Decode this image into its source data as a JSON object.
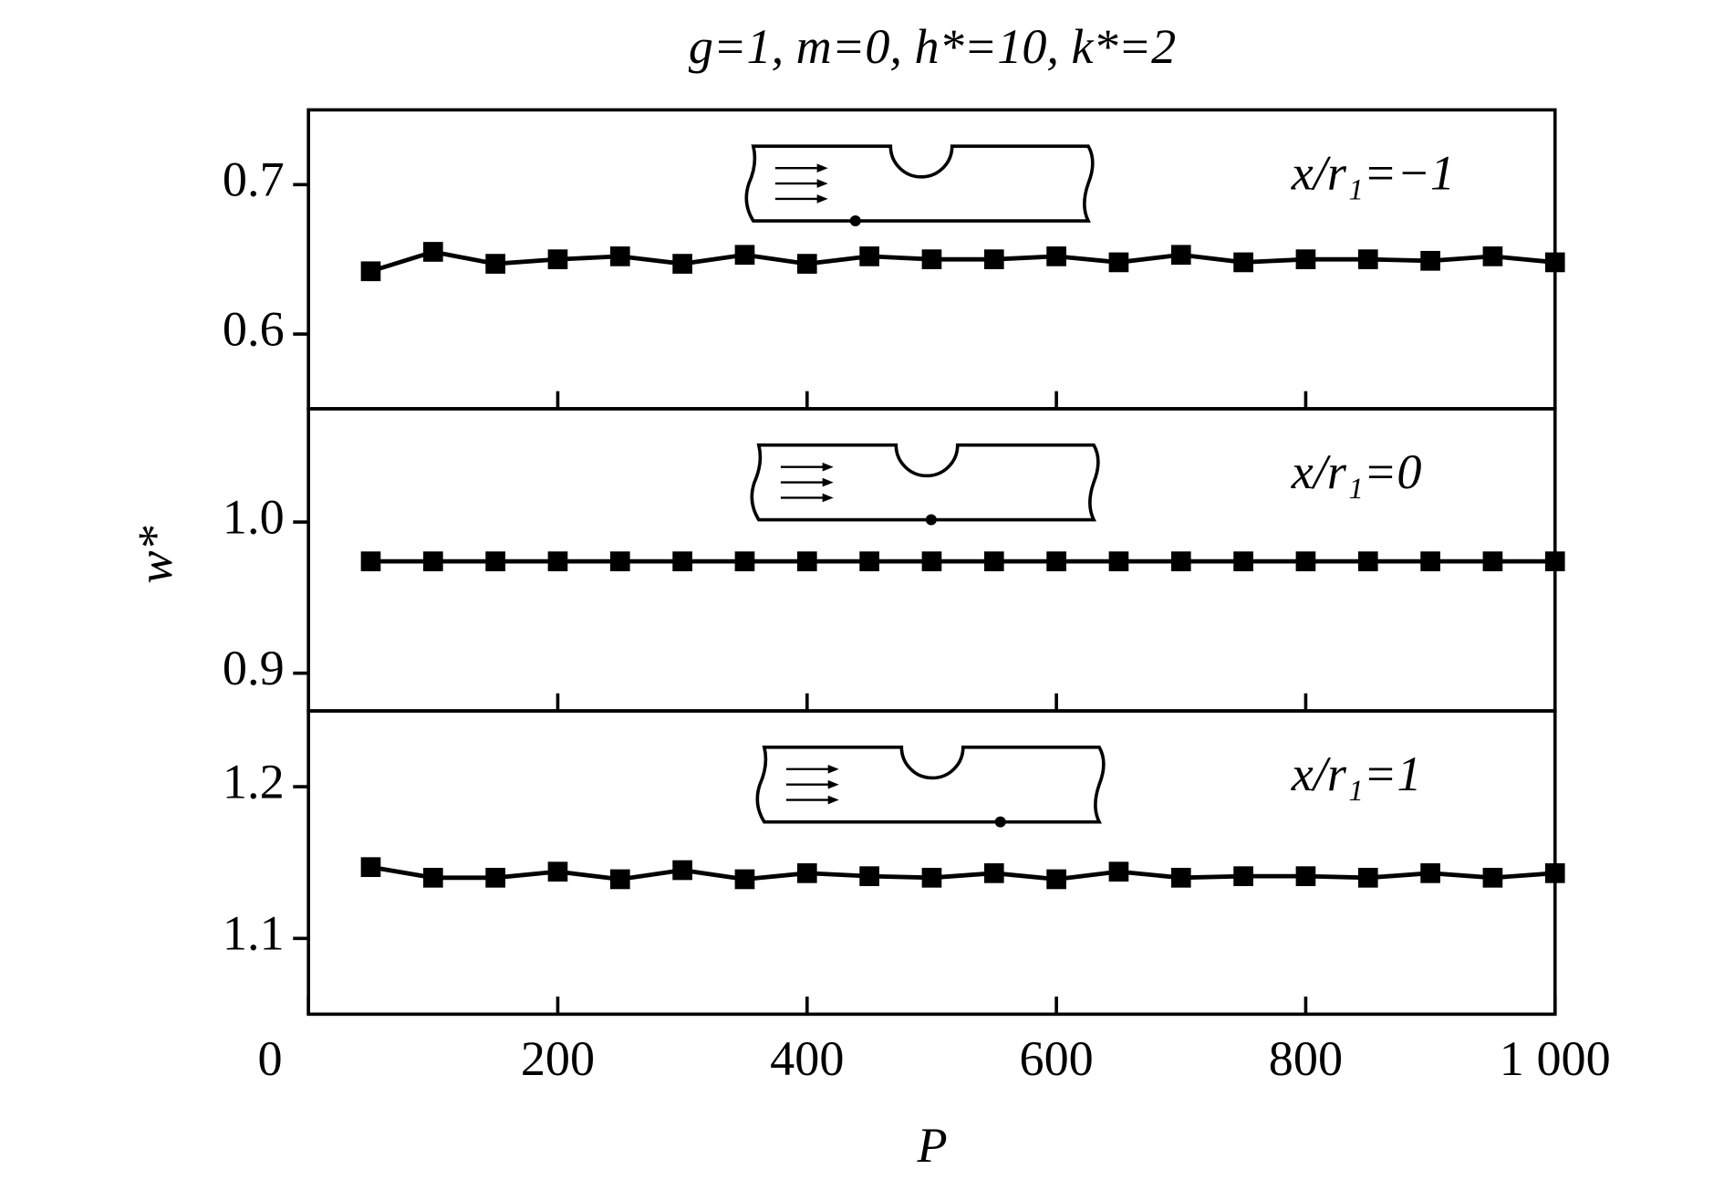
{
  "title": "g=1, m=0, h*=10, k*=2",
  "x_label": "P",
  "y_label": "w*",
  "chart_data": [
    {
      "type": "line",
      "annotation": "x/r₁=−1",
      "x": [
        50,
        100,
        150,
        200,
        250,
        300,
        350,
        400,
        450,
        500,
        550,
        600,
        650,
        700,
        750,
        800,
        850,
        900,
        950,
        1000
      ],
      "values": [
        0.642,
        0.655,
        0.647,
        0.65,
        0.652,
        0.647,
        0.653,
        0.647,
        0.652,
        0.65,
        0.65,
        0.652,
        0.648,
        0.653,
        0.648,
        0.65,
        0.65,
        0.649,
        0.652,
        0.648
      ],
      "color": "#000000",
      "xlim": [
        0,
        1000
      ],
      "xticks": [
        200,
        400,
        600,
        800
      ],
      "ylim": [
        0.55,
        0.75
      ],
      "yticks": [
        0.6,
        0.7
      ]
    },
    {
      "type": "line",
      "annotation": "x/r₁=0",
      "x": [
        50,
        100,
        150,
        200,
        250,
        300,
        350,
        400,
        450,
        500,
        550,
        600,
        650,
        700,
        750,
        800,
        850,
        900,
        950,
        1000
      ],
      "values": [
        0.974,
        0.974,
        0.974,
        0.974,
        0.974,
        0.974,
        0.974,
        0.974,
        0.974,
        0.974,
        0.974,
        0.974,
        0.974,
        0.974,
        0.974,
        0.974,
        0.974,
        0.974,
        0.974,
        0.974
      ],
      "color": "#000000",
      "xlim": [
        0,
        1000
      ],
      "xticks": [
        200,
        400,
        600,
        800
      ],
      "ylim": [
        0.875,
        1.075
      ],
      "yticks": [
        0.9,
        {
          "value": 1,
          "label": "1.0"
        }
      ]
    },
    {
      "type": "line",
      "annotation": "x/r₁=1",
      "x": [
        50,
        100,
        150,
        200,
        250,
        300,
        350,
        400,
        450,
        500,
        550,
        600,
        650,
        700,
        750,
        800,
        850,
        900,
        950,
        1000
      ],
      "values": [
        1.147,
        1.14,
        1.14,
        1.144,
        1.139,
        1.145,
        1.139,
        1.143,
        1.141,
        1.14,
        1.143,
        1.139,
        1.144,
        1.14,
        1.141,
        1.141,
        1.14,
        1.143,
        1.14,
        1.143
      ],
      "color": "#000000",
      "xlim": [
        0,
        1000
      ],
      "xticks": [
        0,
        200,
        400,
        600,
        800,
        {
          "value": 1000,
          "label": "1 000"
        }
      ],
      "ylim": [
        1.05,
        1.25
      ],
      "yticks": [
        1.1,
        1.2
      ]
    }
  ]
}
